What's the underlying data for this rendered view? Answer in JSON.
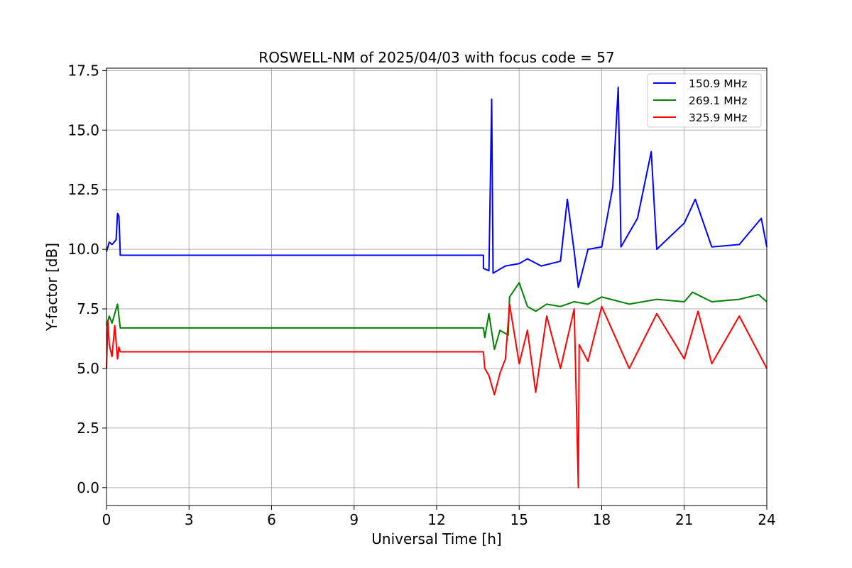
{
  "chart_data": {
    "type": "line",
    "title": "ROSWELL-NM of 2025/04/03 with focus code = 57",
    "xlabel": "Universal Time [h]",
    "ylabel": "Y-factor [dB]",
    "xlim": [
      0,
      24
    ],
    "ylim": [
      -0.75,
      17.6
    ],
    "xticks": [
      0,
      3,
      6,
      9,
      12,
      15,
      18,
      21,
      24
    ],
    "xtick_labels": [
      "0",
      "3",
      "6",
      "9",
      "12",
      "15",
      "18",
      "21",
      "24"
    ],
    "yticks": [
      0.0,
      2.5,
      5.0,
      7.5,
      10.0,
      12.5,
      15.0,
      17.5
    ],
    "ytick_labels": [
      "0.0",
      "2.5",
      "5.0",
      "7.5",
      "10.0",
      "12.5",
      "15.0",
      "17.5"
    ],
    "grid": true,
    "legend_position": "top-right",
    "series": [
      {
        "name": "150.9 MHz",
        "color": "#0000ff",
        "x": [
          0.0,
          0.1,
          0.2,
          0.35,
          0.4,
          0.45,
          0.48,
          0.5,
          13.7,
          13.7,
          13.9,
          14.0,
          14.05,
          14.5,
          15.0,
          15.3,
          15.8,
          16.5,
          16.75,
          17.0,
          17.15,
          17.5,
          18.0,
          18.4,
          18.6,
          18.7,
          19.3,
          19.8,
          20.0,
          21.0,
          21.4,
          22.0,
          23.0,
          23.8,
          24.0
        ],
        "y": [
          9.9,
          10.3,
          10.2,
          10.4,
          11.5,
          11.4,
          10.5,
          9.75,
          9.75,
          9.2,
          9.1,
          16.3,
          9.0,
          9.3,
          9.4,
          9.6,
          9.3,
          9.5,
          12.1,
          9.9,
          8.4,
          10.0,
          10.1,
          12.6,
          16.8,
          10.1,
          11.3,
          14.1,
          10.0,
          11.1,
          12.1,
          10.1,
          10.2,
          11.3,
          10.1
        ]
      },
      {
        "name": "269.1 MHz",
        "color": "#008000",
        "x": [
          0.0,
          0.1,
          0.2,
          0.4,
          0.45,
          0.5,
          13.7,
          13.75,
          13.9,
          14.1,
          14.3,
          14.6,
          14.65,
          15.0,
          15.3,
          15.6,
          16.0,
          16.5,
          17.0,
          17.5,
          18.0,
          19.0,
          20.0,
          21.0,
          21.3,
          22.0,
          23.0,
          23.7,
          24.0
        ],
        "y": [
          6.8,
          7.2,
          6.9,
          7.7,
          7.2,
          6.7,
          6.7,
          6.3,
          7.3,
          5.8,
          6.6,
          6.4,
          8.0,
          8.6,
          7.6,
          7.4,
          7.7,
          7.6,
          7.8,
          7.7,
          8.0,
          7.7,
          7.9,
          7.8,
          8.2,
          7.8,
          7.9,
          8.1,
          7.8
        ]
      },
      {
        "name": "325.9 MHz",
        "color": "#ff0000",
        "x": [
          0.0,
          0.05,
          0.1,
          0.2,
          0.3,
          0.4,
          0.45,
          0.5,
          13.7,
          13.75,
          13.9,
          14.1,
          14.3,
          14.5,
          14.65,
          15.0,
          15.3,
          15.6,
          16.0,
          16.5,
          17.0,
          17.15,
          17.18,
          17.5,
          18.0,
          19.0,
          20.0,
          21.0,
          21.5,
          22.0,
          23.0,
          24.0
        ],
        "y": [
          5.0,
          7.0,
          6.0,
          5.5,
          6.8,
          5.4,
          5.9,
          5.7,
          5.7,
          5.0,
          4.7,
          3.9,
          4.8,
          5.4,
          7.7,
          5.2,
          6.6,
          4.0,
          7.2,
          5.0,
          7.5,
          0.0,
          6.0,
          5.3,
          7.6,
          5.0,
          7.3,
          5.4,
          7.4,
          5.2,
          7.2,
          5.0
        ]
      }
    ]
  }
}
